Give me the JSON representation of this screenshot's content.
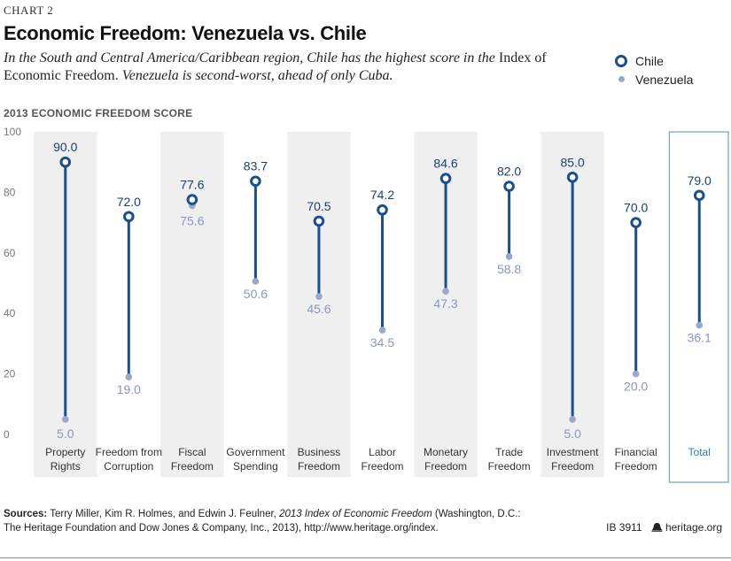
{
  "header": {
    "chart_label": "CHART 2",
    "title": "Economic Freedom: Venezuela vs. Chile",
    "subtitle_part1": "In the South and Central America/Caribbean region, Chile has the highest score in the",
    "subtitle_index": "Index of Economic Freedom.",
    "subtitle_part2": "Venezuela is second-worst, ahead of only Cuba.",
    "score_label": "2013 ECONOMIC FREEDOM SCORE"
  },
  "legend": {
    "chile": "Chile",
    "venezuela": "Venezuela"
  },
  "colors": {
    "chile": "#1a4f8f",
    "venezuela": "#9aa7cc",
    "band": "#efefef",
    "total_border": "#6ea3c2",
    "total_label": "#2a7ab0"
  },
  "chart_data": {
    "type": "dot-range",
    "ylim": [
      0,
      100
    ],
    "yticks": [
      0,
      20,
      40,
      60,
      80,
      100
    ],
    "categories": [
      [
        "Property",
        "Rights"
      ],
      [
        "Freedom from",
        "Corruption"
      ],
      [
        "Fiscal",
        "Freedom"
      ],
      [
        "Government",
        "Spending"
      ],
      [
        "Business",
        "Freedom"
      ],
      [
        "Labor",
        "Freedom"
      ],
      [
        "Monetary",
        "Freedom"
      ],
      [
        "Trade",
        "Freedom"
      ],
      [
        "Investment",
        "Freedom"
      ],
      [
        "Financial",
        "Freedom"
      ],
      [
        "Total"
      ]
    ],
    "series": [
      {
        "name": "Chile",
        "values": [
          90.0,
          72.0,
          77.6,
          83.7,
          70.5,
          74.2,
          84.6,
          82.0,
          85.0,
          70.0,
          79.0
        ]
      },
      {
        "name": "Venezuela",
        "values": [
          5.0,
          19.0,
          75.6,
          50.6,
          45.6,
          34.5,
          47.3,
          58.8,
          5.0,
          20.0,
          36.1
        ]
      }
    ],
    "chile_labels": [
      "90.0",
      "72.0",
      "77.6",
      "83.7",
      "70.5",
      "74.2",
      "84.6",
      "82.0",
      "85.0",
      "70.0",
      "79.0"
    ],
    "venezuela_labels": [
      "5.0",
      "19.0",
      "75.6",
      "50.6",
      "45.6",
      "34.5",
      "47.3",
      "58.8",
      "5.0",
      "20.0",
      "36.1"
    ],
    "highlight_category": "Total"
  },
  "footer": {
    "sources_label": "Sources:",
    "sources_text1": "Terry Miller, Kim R. Holmes, and Edwin J. Feulner,",
    "sources_title": "2013 Index of Economic Freedom",
    "sources_text2": "(Washington, D.C.:",
    "sources_text3": "The Heritage Foundation and Dow Jones & Company, Inc., 2013), http://www.heritage.org/index.",
    "ib_number": "IB 3911",
    "site": "heritage.org"
  }
}
